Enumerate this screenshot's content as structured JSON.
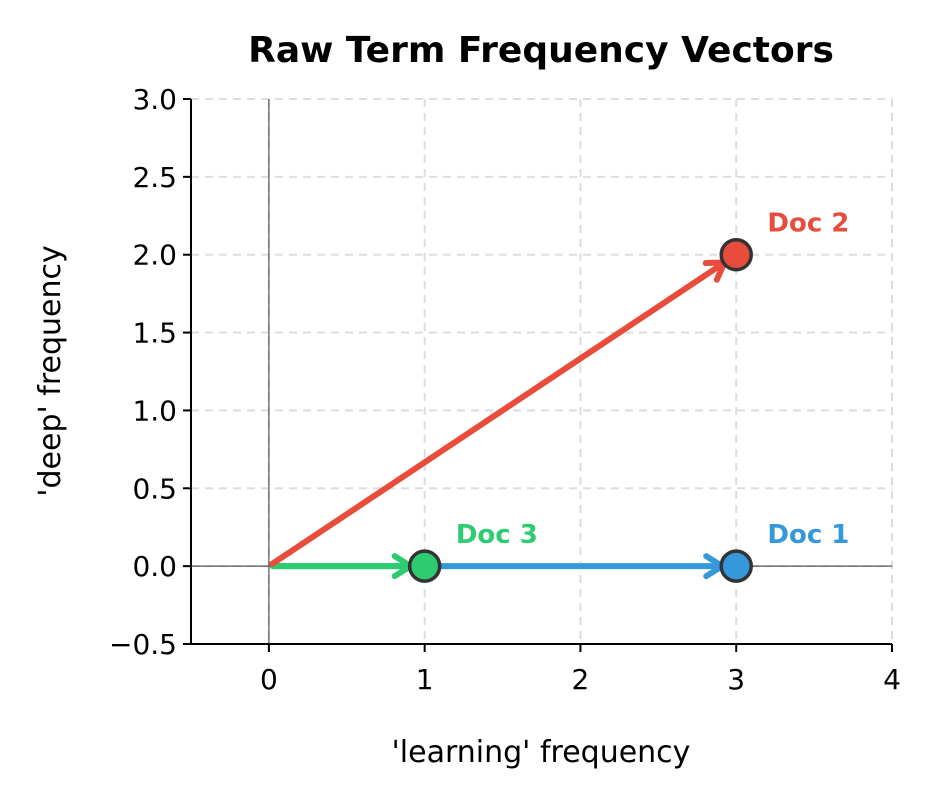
{
  "chart_data": {
    "type": "line",
    "title": "Raw Term Frequency Vectors",
    "xlabel": "'learning' frequency",
    "ylabel": "'deep' frequency",
    "xlim": [
      -0.5,
      4
    ],
    "ylim": [
      -0.5,
      3
    ],
    "xticks": [
      0,
      1,
      2,
      3,
      4
    ],
    "yticks": [
      -0.5,
      0.0,
      0.5,
      1.0,
      1.5,
      2.0,
      2.5,
      3.0
    ],
    "xtick_labels": [
      "0",
      "1",
      "2",
      "3",
      "4"
    ],
    "ytick_labels": [
      "−0.5",
      "0.0",
      "0.5",
      "1.0",
      "1.5",
      "2.0",
      "2.5",
      "3.0"
    ],
    "grid": true,
    "series": [
      {
        "name": "Doc 1",
        "x": 3,
        "y": 0,
        "color": "#3498db"
      },
      {
        "name": "Doc 3",
        "x": 1,
        "y": 0,
        "color": "#2ecc71"
      },
      {
        "name": "Doc 2",
        "x": 3,
        "y": 2,
        "color": "#e74c3c"
      }
    ]
  }
}
